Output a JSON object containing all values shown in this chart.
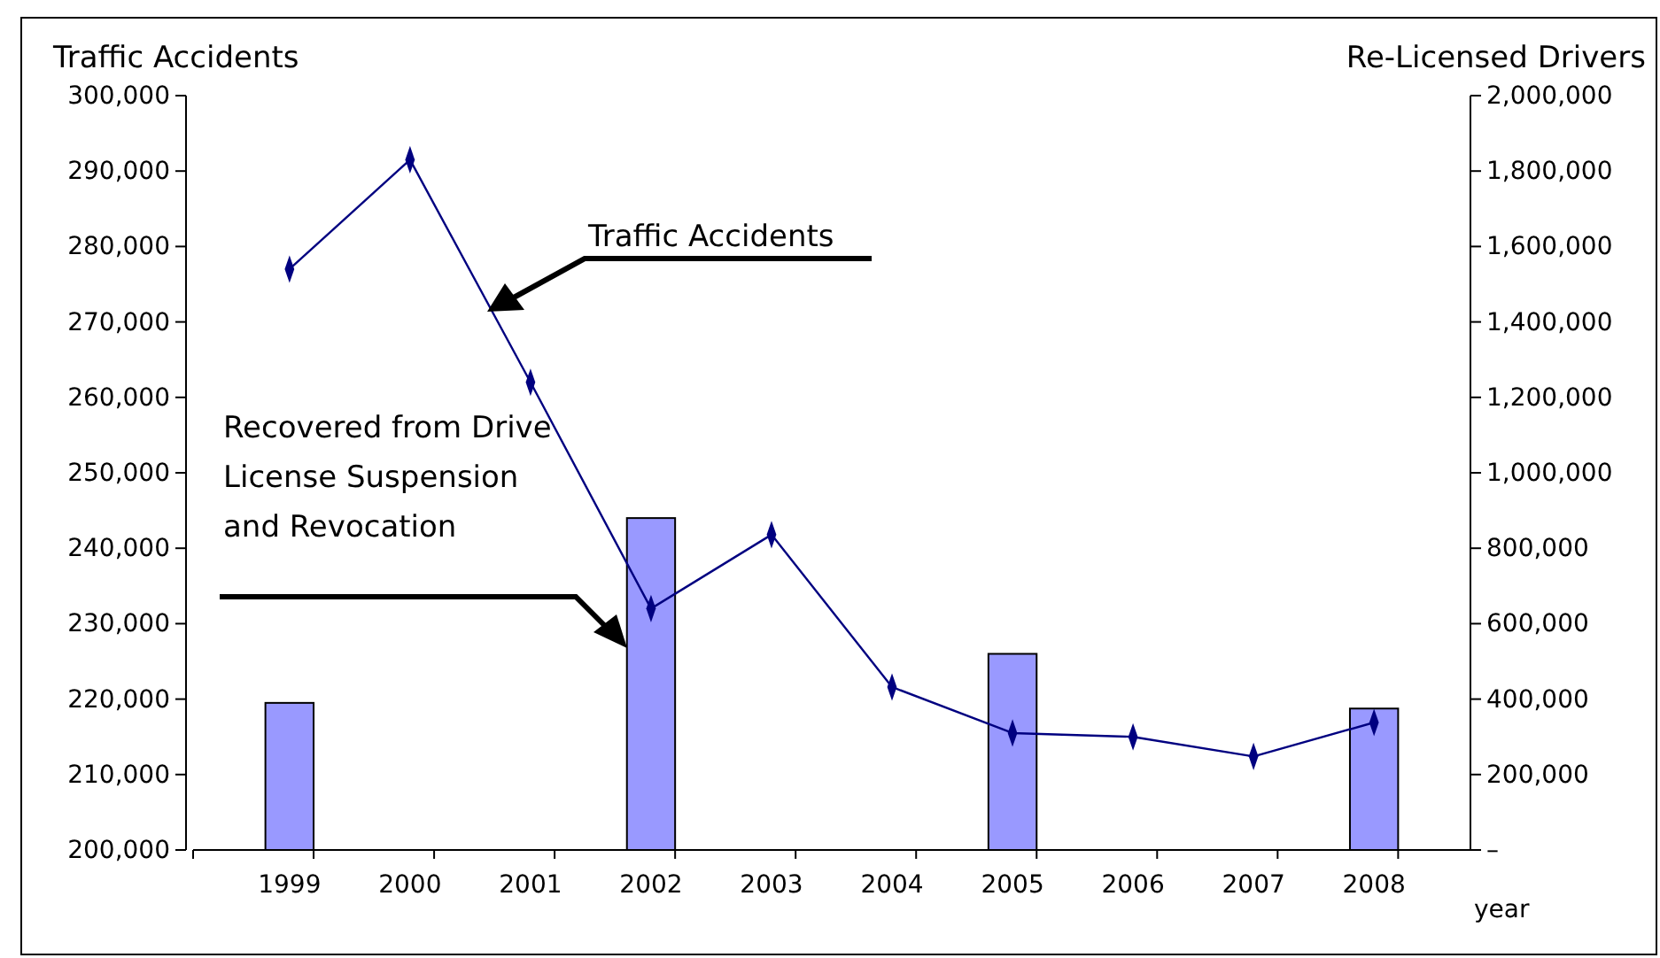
{
  "chart_data": {
    "type": "bar",
    "ylabel": "Traffic Accidents",
    "y2label": "Re-Licensed Drivers",
    "xlabel": "year",
    "categories": [
      "1999",
      "2000",
      "2001",
      "2002",
      "2003",
      "2004",
      "2005",
      "2006",
      "2007",
      "2008"
    ],
    "series": [
      {
        "axis": "y2",
        "color": "#9999ff",
        "values": [
          390000,
          null,
          null,
          880000,
          null,
          null,
          520000,
          null,
          null,
          375000
        ]
      },
      {
        "type": "line",
        "axis": "y",
        "color": "#000080",
        "values": [
          277000,
          291500,
          262000,
          232000,
          241800,
          221600,
          215500,
          215000,
          212400,
          216900
        ]
      }
    ],
    "ylim": [
      200000,
      300000
    ],
    "yticks": [
      {
        "value": 200000,
        "label": "200,000"
      },
      {
        "value": 210000,
        "label": "210,000"
      },
      {
        "value": 220000,
        "label": "220,000"
      },
      {
        "value": 230000,
        "label": "230,000"
      },
      {
        "value": 240000,
        "label": "240,000"
      },
      {
        "value": 250000,
        "label": "250,000"
      },
      {
        "value": 260000,
        "label": "260,000"
      },
      {
        "value": 270000,
        "label": "270,000"
      },
      {
        "value": 280000,
        "label": "280,000"
      },
      {
        "value": 290000,
        "label": "290,000"
      },
      {
        "value": 300000,
        "label": "300,000"
      }
    ],
    "y2lim": [
      0,
      2000000
    ],
    "y2ticks": [
      {
        "value": 0,
        "label": "–"
      },
      {
        "value": 200000,
        "label": "200,000"
      },
      {
        "value": 400000,
        "label": "400,000"
      },
      {
        "value": 600000,
        "label": "600,000"
      },
      {
        "value": 800000,
        "label": "800,000"
      },
      {
        "value": 1000000,
        "label": "1,000,000"
      },
      {
        "value": 1200000,
        "label": "1,200,000"
      },
      {
        "value": 1400000,
        "label": "1,400,000"
      },
      {
        "value": 1600000,
        "label": "1,600,000"
      },
      {
        "value": 1800000,
        "label": "1,800,000"
      },
      {
        "value": 2000000,
        "label": "2,000,000"
      }
    ],
    "marker": "diamond",
    "line_style": "solid",
    "grid": false,
    "legend": false,
    "annotations": [
      "Traffic Accidents",
      "Recovered from Drive License Suspension and Revocation"
    ]
  }
}
